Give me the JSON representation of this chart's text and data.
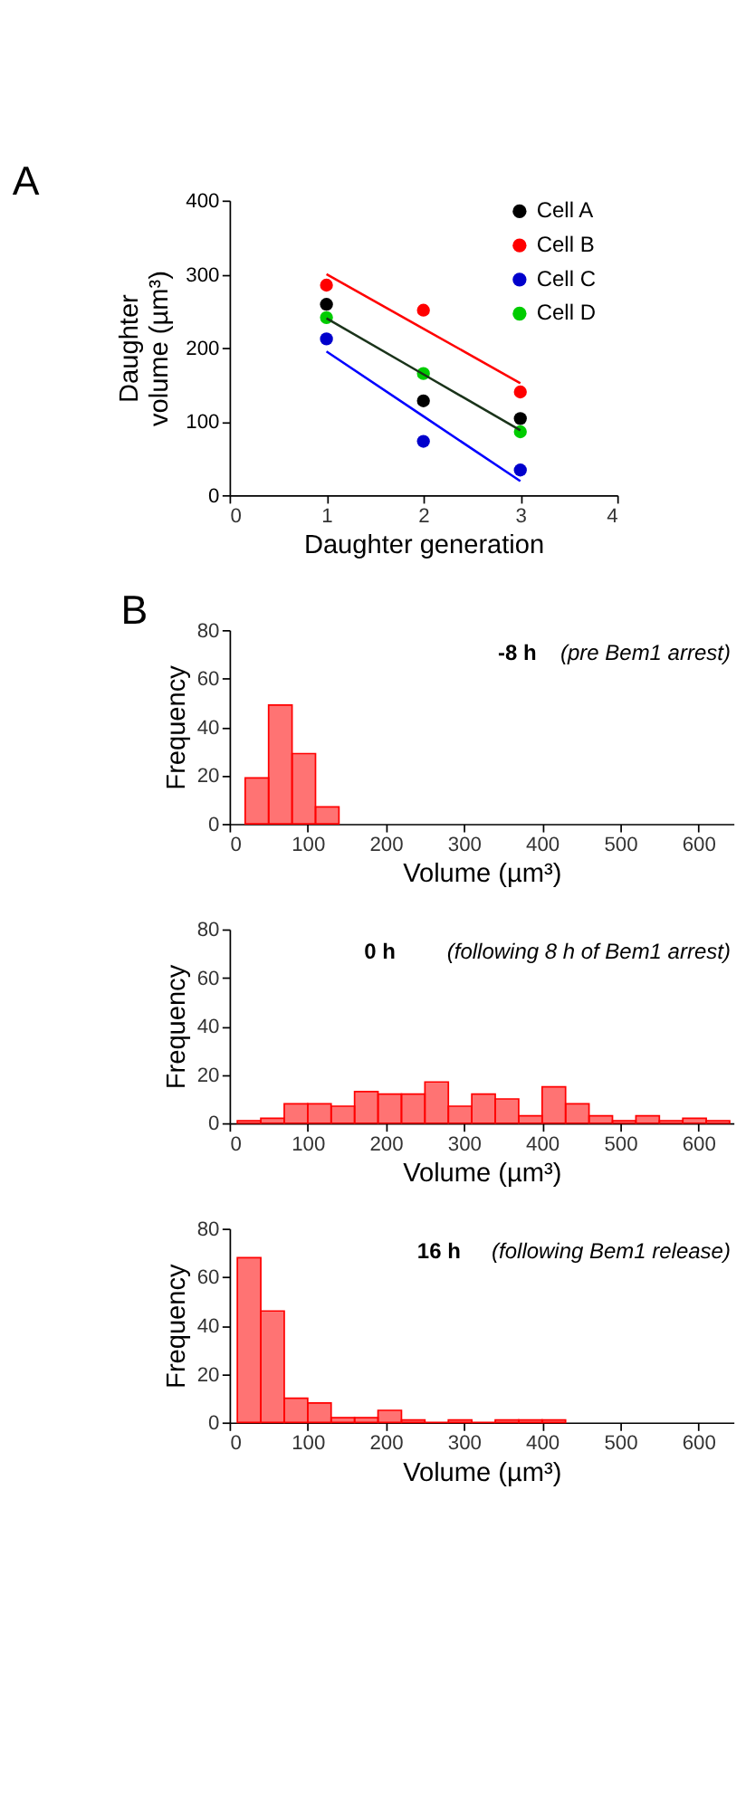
{
  "chart_data": [
    {
      "type": "scatter",
      "xlabel": "Daughter generation",
      "ylabel": "Daughter volume (µm³)",
      "annotations": [
        "A"
      ],
      "xlim": [
        0,
        4
      ],
      "xticks": [
        0,
        1,
        2,
        3,
        4
      ],
      "ylim": [
        0,
        400
      ],
      "yticks": [
        0,
        100,
        200,
        300,
        400
      ],
      "grid": false,
      "legend": "top right",
      "marker": "circle",
      "x": [
        1,
        2,
        3
      ],
      "series": [
        {
          "name": "Cell A",
          "color": "#000000",
          "values": [
            259,
            128,
            104
          ]
        },
        {
          "name": "Cell B",
          "color": "#ff0000",
          "values": [
            285,
            251,
            140
          ]
        },
        {
          "name": "Cell C",
          "color": "#0000cc",
          "values": [
            212,
            73,
            34
          ]
        },
        {
          "name": "Cell D",
          "color": "#00cc00",
          "values": [
            241,
            165,
            86
          ]
        },
        {
          "type": "line",
          "marker": "none",
          "color": "#ff0000",
          "values": [
            300,
            226,
            152
          ]
        },
        {
          "type": "line",
          "marker": "none",
          "color": "#1a331a",
          "values": [
            240,
            164,
            88
          ]
        },
        {
          "type": "line",
          "marker": "none",
          "color": "#0000ff",
          "values": [
            195,
            107,
            19
          ]
        }
      ]
    },
    {
      "type": "histogram",
      "title": "-8 h",
      "subtitle": "(pre Bem1 arrest)",
      "annotations": [
        "B"
      ],
      "xlabel": "Volume (µm³)",
      "ylabel": "Frequency",
      "xlim": [
        0,
        645
      ],
      "xticks": [
        0,
        100,
        200,
        300,
        400,
        500,
        600
      ],
      "ylim": [
        0,
        80
      ],
      "yticks": [
        0,
        20,
        40,
        60,
        80
      ],
      "grid": false,
      "color": "#ff0000",
      "bins": [
        20,
        50,
        80,
        110,
        140
      ],
      "values": [
        19,
        49,
        29,
        7
      ]
    },
    {
      "type": "histogram",
      "title": "0 h",
      "subtitle": "(following 8 h of Bem1 arrest)",
      "xlabel": "Volume (µm³)",
      "ylabel": "Frequency",
      "xlim": [
        0,
        645
      ],
      "xticks": [
        0,
        100,
        200,
        300,
        400,
        500,
        600
      ],
      "ylim": [
        0,
        80
      ],
      "yticks": [
        0,
        20,
        40,
        60,
        80
      ],
      "grid": false,
      "color": "#ff0000",
      "bins": [
        10,
        40,
        70,
        100,
        130,
        160,
        190,
        220,
        250,
        280,
        310,
        340,
        370,
        400,
        430,
        460,
        490,
        520,
        550,
        580,
        610,
        640
      ],
      "values": [
        1,
        2,
        8,
        8,
        7,
        13,
        12,
        12,
        17,
        7,
        12,
        10,
        3,
        15,
        8,
        3,
        1,
        3,
        1,
        2,
        1
      ]
    },
    {
      "type": "histogram",
      "title": "16 h",
      "subtitle": "(following Bem1 release)",
      "xlabel": "Volume (µm³)",
      "ylabel": "Frequency",
      "xlim": [
        0,
        645
      ],
      "xticks": [
        0,
        100,
        200,
        300,
        400,
        500,
        600
      ],
      "ylim": [
        0,
        80
      ],
      "yticks": [
        0,
        20,
        40,
        60,
        80
      ],
      "grid": false,
      "color": "#ff0000",
      "bins": [
        10,
        40,
        70,
        100,
        130,
        160,
        190,
        220,
        250,
        280,
        310,
        340,
        370,
        400,
        430
      ],
      "values": [
        68,
        46,
        10,
        8,
        2,
        2,
        5,
        1,
        0,
        1,
        0,
        1,
        1,
        1
      ]
    }
  ]
}
